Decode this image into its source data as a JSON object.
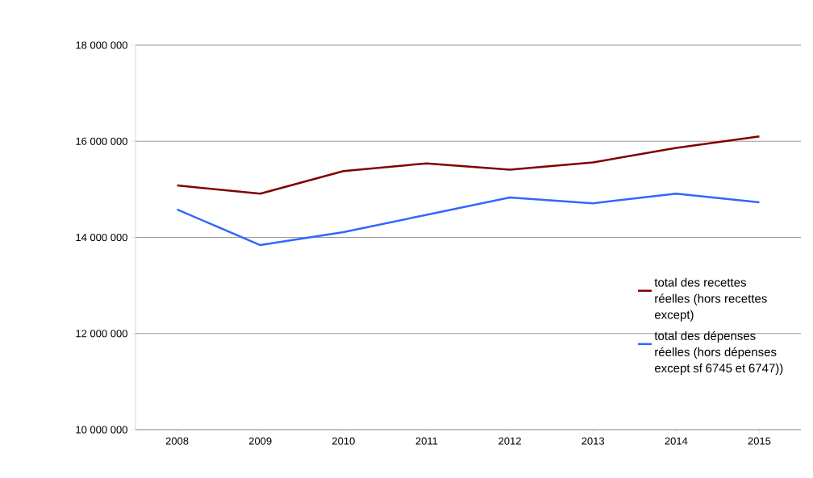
{
  "chart_data": {
    "type": "line",
    "categories": [
      "2008",
      "2009",
      "2010",
      "2011",
      "2012",
      "2013",
      "2014",
      "2015"
    ],
    "series": [
      {
        "name": "total des recettes réelles (hors recettes except)",
        "color": "#800000",
        "values": [
          15080000,
          14910000,
          15380000,
          15540000,
          15410000,
          15560000,
          15860000,
          16100000
        ]
      },
      {
        "name": "total des dépenses réelles (hors dépenses except sf 6745 et 6747))",
        "color": "#3366ff",
        "values": [
          14580000,
          13840000,
          14110000,
          14470000,
          14830000,
          14710000,
          14910000,
          14730000
        ]
      }
    ],
    "ylim": [
      10000000,
      18000000
    ],
    "yticks": [
      {
        "value": 10000000,
        "label": "10 000 000"
      },
      {
        "value": 12000000,
        "label": "12 000 000"
      },
      {
        "value": 14000000,
        "label": "14 000 000"
      },
      {
        "value": 16000000,
        "label": "16 000 000"
      },
      {
        "value": 18000000,
        "label": "18 000 000"
      }
    ],
    "grid": "y",
    "legend": "right",
    "marker": "none",
    "line_style": "solid"
  }
}
